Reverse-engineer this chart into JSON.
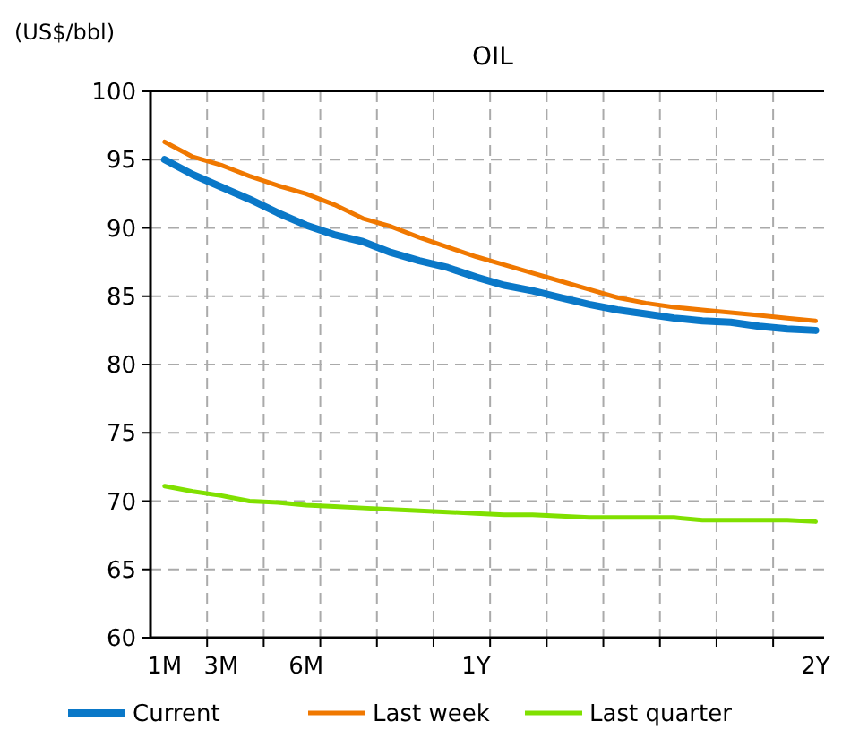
{
  "chart_data": {
    "type": "line",
    "title": "OIL",
    "ylabel": "(US$/bbl)",
    "categories": [
      "1M",
      null,
      "3M",
      null,
      null,
      "6M",
      null,
      null,
      null,
      null,
      null,
      "1Y",
      null,
      null,
      null,
      null,
      null,
      null,
      null,
      null,
      null,
      null,
      null,
      "2Y"
    ],
    "series": [
      {
        "name": "Current",
        "color": "#0a78c8",
        "values": [
          95.0,
          93.9,
          93.0,
          92.1,
          91.1,
          90.2,
          89.5,
          89.0,
          88.2,
          87.6,
          87.1,
          86.4,
          85.8,
          85.4,
          84.9,
          84.4,
          84.0,
          83.7,
          83.4,
          83.2,
          83.1,
          82.8,
          82.6,
          82.5
        ]
      },
      {
        "name": "Last week",
        "color": "#f07800",
        "values": [
          96.3,
          95.2,
          94.6,
          93.8,
          93.1,
          92.5,
          91.7,
          90.7,
          90.1,
          89.3,
          88.6,
          87.9,
          87.3,
          86.7,
          86.1,
          85.5,
          84.9,
          84.5,
          84.2,
          84.0,
          83.8,
          83.6,
          83.4,
          83.2
        ]
      },
      {
        "name": "Last quarter",
        "color": "#80e000",
        "values": [
          71.1,
          70.7,
          70.4,
          70.0,
          69.9,
          69.7,
          69.6,
          69.5,
          69.4,
          69.3,
          69.2,
          69.1,
          69.0,
          69.0,
          68.9,
          68.8,
          68.8,
          68.8,
          68.8,
          68.6,
          68.6,
          68.6,
          68.6,
          68.5
        ]
      }
    ],
    "ylim": [
      60,
      100
    ],
    "yticks": [
      60,
      65,
      70,
      75,
      80,
      85,
      90,
      95,
      100
    ],
    "grid": true,
    "legend": "bottom",
    "marker": "none",
    "line_style": "solid"
  }
}
